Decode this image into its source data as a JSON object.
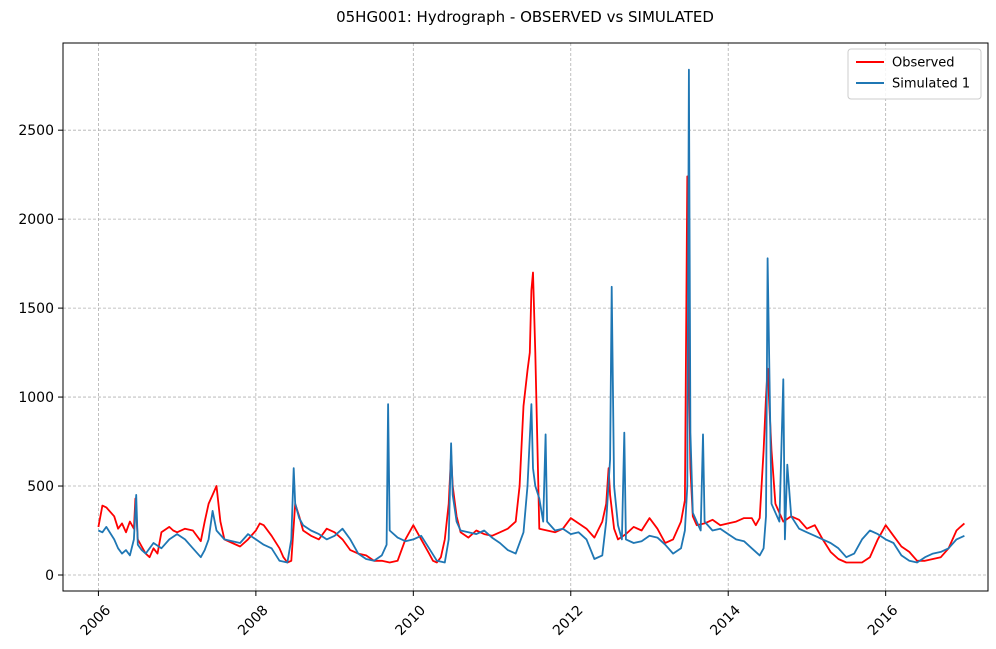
{
  "chart_data": {
    "type": "line",
    "title": "05HG001: Hydrograph - OBSERVED vs SIMULATED",
    "xlabel": "",
    "ylabel": "",
    "xlim": [
      2005.55,
      2017.3
    ],
    "ylim": [
      -90,
      2990
    ],
    "x_ticks": [
      2006,
      2008,
      2010,
      2012,
      2014,
      2016
    ],
    "x_tick_labels": [
      "2006",
      "2008",
      "2010",
      "2012",
      "2014",
      "2016"
    ],
    "y_ticks": [
      0,
      500,
      1000,
      1500,
      2000,
      2500
    ],
    "y_tick_labels": [
      "0",
      "500",
      "1000",
      "1500",
      "2000",
      "2500"
    ],
    "grid": true,
    "legend_position": "top-right",
    "series": [
      {
        "name": "Observed",
        "color": "#ff0000",
        "x": [
          2006.0,
          2006.05,
          2006.1,
          2006.2,
          2006.25,
          2006.3,
          2006.35,
          2006.4,
          2006.45,
          2006.47,
          2006.5,
          2006.55,
          2006.6,
          2006.65,
          2006.7,
          2006.75,
          2006.8,
          2006.9,
          2006.95,
          2007.0,
          2007.1,
          2007.2,
          2007.3,
          2007.35,
          2007.4,
          2007.45,
          2007.5,
          2007.55,
          2007.6,
          2007.7,
          2007.8,
          2007.9,
          2008.0,
          2008.05,
          2008.1,
          2008.2,
          2008.3,
          2008.35,
          2008.4,
          2008.45,
          2008.5,
          2008.55,
          2008.6,
          2008.7,
          2008.8,
          2008.9,
          2009.0,
          2009.1,
          2009.2,
          2009.3,
          2009.4,
          2009.5,
          2009.6,
          2009.7,
          2009.8,
          2009.9,
          2010.0,
          2010.1,
          2010.2,
          2010.25,
          2010.3,
          2010.35,
          2010.4,
          2010.45,
          2010.48,
          2010.5,
          2010.55,
          2010.6,
          2010.7,
          2010.8,
          2010.9,
          2011.0,
          2011.1,
          2011.2,
          2011.3,
          2011.35,
          2011.4,
          2011.45,
          2011.48,
          2011.5,
          2011.52,
          2011.55,
          2011.6,
          2011.7,
          2011.8,
          2011.9,
          2012.0,
          2012.1,
          2012.2,
          2012.3,
          2012.4,
          2012.45,
          2012.48,
          2012.5,
          2012.55,
          2012.6,
          2012.7,
          2012.8,
          2012.9,
          2013.0,
          2013.1,
          2013.2,
          2013.3,
          2013.4,
          2013.45,
          2013.48,
          2013.5,
          2013.52,
          2013.55,
          2013.6,
          2013.7,
          2013.8,
          2013.9,
          2014.0,
          2014.1,
          2014.2,
          2014.3,
          2014.35,
          2014.4,
          2014.45,
          2014.48,
          2014.5,
          2014.55,
          2014.6,
          2014.7,
          2014.8,
          2014.9,
          2015.0,
          2015.1,
          2015.2,
          2015.3,
          2015.4,
          2015.5,
          2015.6,
          2015.7,
          2015.8,
          2015.9,
          2016.0,
          2016.1,
          2016.2,
          2016.3,
          2016.4,
          2016.5,
          2016.6,
          2016.7,
          2016.8,
          2016.9,
          2016.95,
          2017.0
        ],
        "values": [
          270,
          390,
          380,
          330,
          260,
          290,
          240,
          300,
          260,
          430,
          200,
          160,
          120,
          100,
          150,
          120,
          240,
          270,
          250,
          240,
          260,
          250,
          190,
          300,
          400,
          450,
          500,
          300,
          200,
          180,
          160,
          200,
          250,
          290,
          280,
          220,
          150,
          100,
          70,
          80,
          400,
          330,
          250,
          220,
          200,
          260,
          240,
          200,
          140,
          120,
          110,
          80,
          80,
          70,
          80,
          200,
          280,
          200,
          120,
          80,
          70,
          100,
          200,
          400,
          680,
          500,
          330,
          240,
          210,
          250,
          230,
          220,
          240,
          260,
          300,
          500,
          950,
          1150,
          1250,
          1600,
          1700,
          1250,
          260,
          250,
          240,
          260,
          320,
          290,
          260,
          210,
          300,
          400,
          600,
          450,
          260,
          200,
          230,
          270,
          250,
          320,
          260,
          180,
          200,
          300,
          420,
          2240,
          1200,
          600,
          330,
          280,
          290,
          310,
          280,
          290,
          300,
          320,
          320,
          280,
          320,
          700,
          1000,
          1160,
          700,
          400,
          300,
          330,
          310,
          260,
          280,
          200,
          130,
          90,
          70,
          70,
          70,
          100,
          200,
          280,
          220,
          160,
          130,
          80,
          80,
          90,
          100,
          150,
          250,
          270,
          290
        ]
      },
      {
        "name": "Simulated 1",
        "color": "#1f77b4",
        "x": [
          2006.0,
          2006.05,
          2006.1,
          2006.2,
          2006.25,
          2006.3,
          2006.35,
          2006.4,
          2006.45,
          2006.48,
          2006.5,
          2006.55,
          2006.6,
          2006.7,
          2006.8,
          2006.9,
          2007.0,
          2007.1,
          2007.2,
          2007.3,
          2007.35,
          2007.4,
          2007.45,
          2007.5,
          2007.6,
          2007.7,
          2007.8,
          2007.9,
          2008.0,
          2008.1,
          2008.2,
          2008.3,
          2008.4,
          2008.45,
          2008.48,
          2008.5,
          2008.55,
          2008.6,
          2008.7,
          2008.8,
          2008.9,
          2009.0,
          2009.1,
          2009.2,
          2009.3,
          2009.4,
          2009.5,
          2009.6,
          2009.66,
          2009.68,
          2009.7,
          2009.8,
          2009.9,
          2010.0,
          2010.1,
          2010.2,
          2010.3,
          2010.4,
          2010.45,
          2010.48,
          2010.5,
          2010.55,
          2010.6,
          2010.7,
          2010.8,
          2010.9,
          2011.0,
          2011.1,
          2011.2,
          2011.3,
          2011.4,
          2011.45,
          2011.5,
          2011.52,
          2011.55,
          2011.6,
          2011.65,
          2011.68,
          2011.7,
          2011.8,
          2011.9,
          2012.0,
          2012.1,
          2012.2,
          2012.3,
          2012.4,
          2012.45,
          2012.5,
          2012.52,
          2012.55,
          2012.6,
          2012.65,
          2012.68,
          2012.7,
          2012.8,
          2012.9,
          2013.0,
          2013.1,
          2013.2,
          2013.3,
          2013.4,
          2013.45,
          2013.48,
          2013.5,
          2013.52,
          2013.55,
          2013.6,
          2013.65,
          2013.68,
          2013.7,
          2013.8,
          2013.9,
          2014.0,
          2014.1,
          2014.2,
          2014.3,
          2014.4,
          2014.45,
          2014.48,
          2014.5,
          2014.55,
          2014.6,
          2014.65,
          2014.7,
          2014.72,
          2014.75,
          2014.8,
          2014.9,
          2015.0,
          2015.1,
          2015.2,
          2015.3,
          2015.4,
          2015.5,
          2015.6,
          2015.7,
          2015.8,
          2015.9,
          2016.0,
          2016.1,
          2016.2,
          2016.3,
          2016.4,
          2016.5,
          2016.6,
          2016.7,
          2016.8,
          2016.9,
          2017.0
        ],
        "values": [
          250,
          240,
          270,
          200,
          150,
          120,
          140,
          110,
          200,
          450,
          170,
          140,
          120,
          180,
          150,
          200,
          230,
          200,
          150,
          100,
          140,
          200,
          360,
          250,
          200,
          190,
          180,
          230,
          200,
          170,
          150,
          80,
          70,
          200,
          600,
          400,
          320,
          280,
          250,
          230,
          200,
          220,
          260,
          200,
          120,
          90,
          80,
          110,
          170,
          960,
          250,
          210,
          190,
          200,
          220,
          150,
          80,
          70,
          200,
          740,
          450,
          300,
          250,
          240,
          230,
          250,
          210,
          180,
          140,
          120,
          240,
          500,
          960,
          600,
          500,
          430,
          300,
          790,
          300,
          250,
          260,
          230,
          240,
          200,
          90,
          110,
          300,
          650,
          1620,
          500,
          280,
          200,
          800,
          200,
          180,
          190,
          220,
          210,
          170,
          120,
          150,
          250,
          500,
          2840,
          800,
          350,
          300,
          250,
          790,
          300,
          250,
          260,
          230,
          200,
          190,
          150,
          110,
          150,
          330,
          1780,
          400,
          350,
          300,
          1100,
          200,
          620,
          330,
          260,
          240,
          220,
          200,
          180,
          150,
          100,
          120,
          200,
          250,
          230,
          200,
          180,
          110,
          80,
          70,
          100,
          120,
          130,
          150,
          200,
          220
        ]
      }
    ]
  }
}
